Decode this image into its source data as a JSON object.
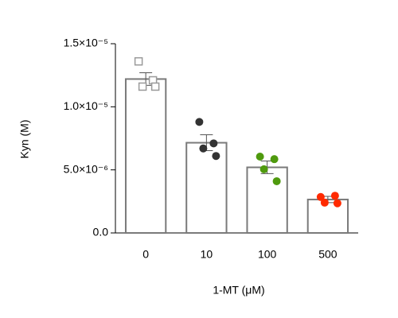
{
  "chart_data": {
    "type": "bar",
    "categories": [
      "0",
      "10",
      "100",
      "500"
    ],
    "values": [
      1.22e-05,
      7.15e-06,
      5.2e-06,
      2.65e-06
    ],
    "errors": [
      5e-07,
      6.3e-07,
      5e-07,
      2.5e-07
    ],
    "bar_color": "#ffffff",
    "bar_edge": "#7a7a7a",
    "points": [
      {
        "marker": "square",
        "color": "#9a9a9a",
        "values": [
          1.36e-05,
          1.21e-05,
          1.16e-05,
          1.16e-05
        ]
      },
      {
        "marker": "circle",
        "color": "#333333",
        "values": [
          8.8e-06,
          7.1e-06,
          6.7e-06,
          6.1e-06
        ]
      },
      {
        "marker": "circle",
        "color": "#4f9a0e",
        "values": [
          6.05e-06,
          5.85e-06,
          5.05e-06,
          4.1e-06
        ]
      },
      {
        "marker": "circle",
        "color": "#ff2a00",
        "values": [
          2.85e-06,
          2.95e-06,
          2.4e-06,
          2.35e-06
        ]
      }
    ],
    "x_label": "1-MT (μM)",
    "y_label": "Kyn (M)",
    "ylim": [
      0,
      1.5e-05
    ],
    "yticks": [
      {
        "value": 0,
        "label": "0.0"
      },
      {
        "value": 5e-06,
        "label": "5.0×10⁻⁶"
      },
      {
        "value": 1e-05,
        "label": "1.0×10⁻⁵"
      },
      {
        "value": 1.5e-05,
        "label": "1.5×10⁻⁵"
      }
    ],
    "grid": false
  }
}
